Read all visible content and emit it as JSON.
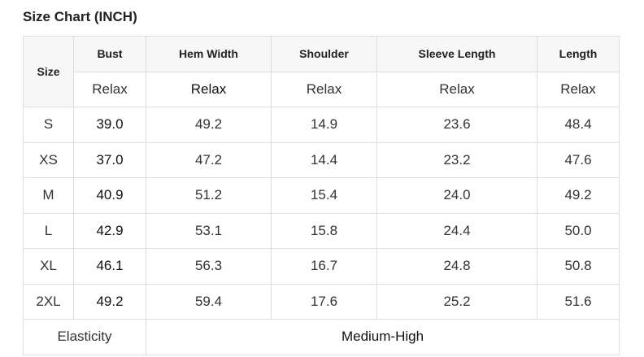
{
  "title": "Size Chart (INCH)",
  "headers": {
    "size": "Size",
    "columns": [
      "Bust",
      "Hem Width",
      "Shoulder",
      "Sleeve Length",
      "Length"
    ]
  },
  "fit": [
    "Relax",
    "Relax",
    "Relax",
    "Relax",
    "Relax"
  ],
  "rows": [
    {
      "size": "S",
      "values": [
        "39.0",
        "49.2",
        "14.9",
        "23.6",
        "48.4"
      ]
    },
    {
      "size": "XS",
      "values": [
        "37.0",
        "47.2",
        "14.4",
        "23.2",
        "47.6"
      ]
    },
    {
      "size": "M",
      "values": [
        "40.9",
        "51.2",
        "15.4",
        "24.0",
        "49.2"
      ]
    },
    {
      "size": "L",
      "values": [
        "42.9",
        "53.1",
        "15.8",
        "24.4",
        "50.0"
      ]
    },
    {
      "size": "XL",
      "values": [
        "46.1",
        "56.3",
        "16.7",
        "24.8",
        "50.8"
      ]
    },
    {
      "size": "2XL",
      "values": [
        "49.2",
        "59.4",
        "17.6",
        "25.2",
        "51.6"
      ]
    }
  ],
  "elasticity": {
    "label": "Elasticity",
    "value": "Medium-High"
  }
}
